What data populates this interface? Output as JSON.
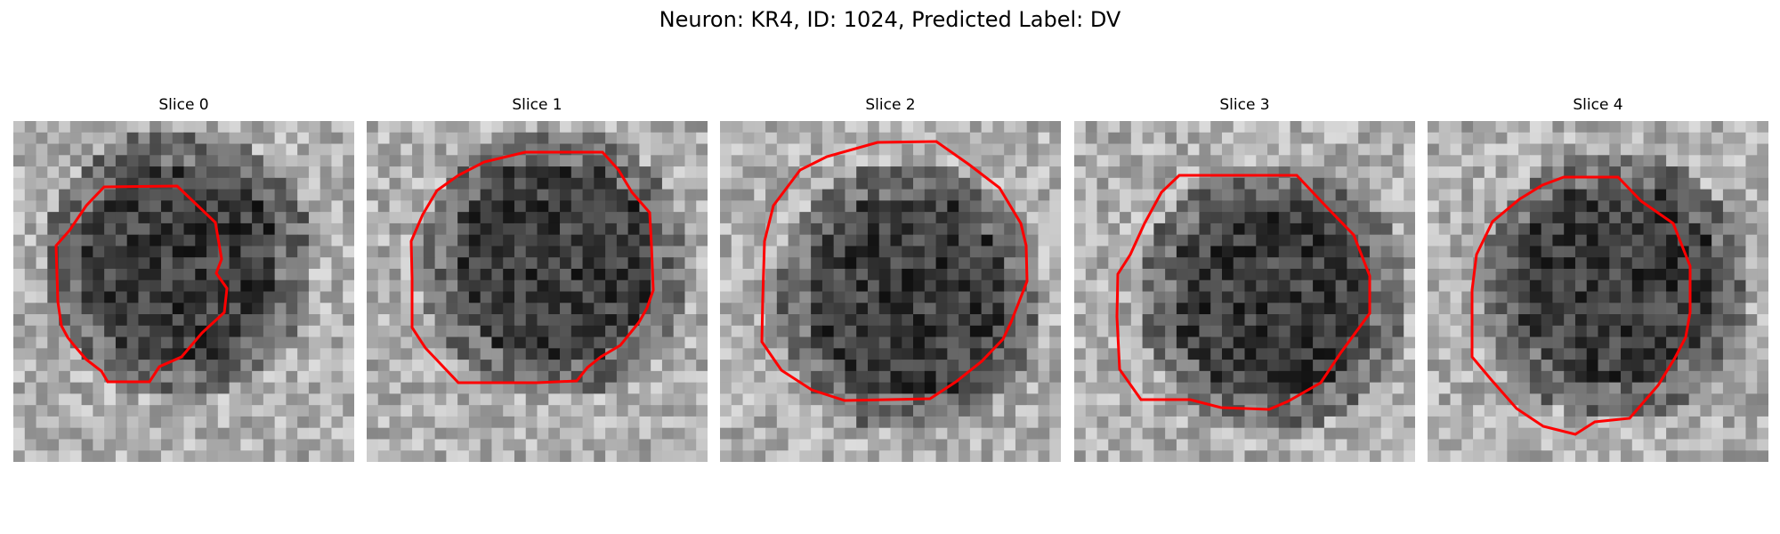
{
  "figure": {
    "title": "Neuron: KR4, ID: 1024, Predicted Label: DV"
  },
  "panels": [
    {
      "title": "Slice 0"
    },
    {
      "title": "Slice 1"
    },
    {
      "title": "Slice 2"
    },
    {
      "title": "Slice 3"
    },
    {
      "title": "Slice 4"
    }
  ],
  "colors": {
    "contour": "#ff0000",
    "colormap": "grayscale"
  }
}
